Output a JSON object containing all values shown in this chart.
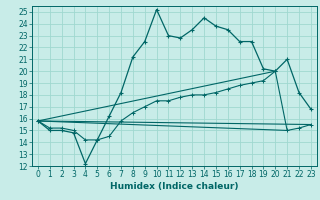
{
  "title": "",
  "xlabel": "Humidex (Indice chaleur)",
  "bg_color": "#c8ece8",
  "grid_color": "#a0d8d0",
  "line_color": "#006666",
  "xlim": [
    -0.5,
    23.5
  ],
  "ylim": [
    12,
    25.5
  ],
  "xticks": [
    0,
    1,
    2,
    3,
    4,
    5,
    6,
    7,
    8,
    9,
    10,
    11,
    12,
    13,
    14,
    15,
    16,
    17,
    18,
    19,
    20,
    21,
    22,
    23
  ],
  "yticks": [
    12,
    13,
    14,
    15,
    16,
    17,
    18,
    19,
    20,
    21,
    22,
    23,
    24,
    25
  ],
  "line1_x": [
    0,
    1,
    2,
    3,
    4,
    5,
    6,
    7,
    8,
    9,
    10,
    11,
    12,
    13,
    14,
    15,
    16,
    17,
    18,
    19,
    20,
    21,
    22,
    23
  ],
  "line1_y": [
    15.8,
    15.0,
    15.0,
    14.8,
    12.2,
    14.2,
    16.2,
    18.2,
    21.2,
    22.5,
    25.2,
    23.0,
    22.8,
    23.5,
    24.5,
    23.8,
    23.5,
    22.5,
    22.5,
    20.2,
    20.0,
    21.0,
    18.2,
    16.8
  ],
  "line2_x": [
    0,
    1,
    2,
    3,
    4,
    5,
    6,
    7,
    8,
    9,
    10,
    11,
    12,
    13,
    14,
    15,
    16,
    17,
    18,
    19,
    20,
    21,
    22,
    23
  ],
  "line2_y": [
    15.8,
    15.2,
    15.2,
    15.0,
    14.2,
    14.2,
    14.5,
    15.8,
    16.5,
    17.0,
    17.5,
    17.5,
    17.8,
    18.0,
    18.0,
    18.2,
    18.5,
    18.8,
    19.0,
    19.2,
    20.0,
    15.0,
    15.2,
    15.5
  ],
  "line3_x": [
    0,
    23
  ],
  "line3_y": [
    15.8,
    15.5
  ],
  "line4_x": [
    0,
    20
  ],
  "line4_y": [
    15.8,
    20.0
  ],
  "line5_x": [
    0,
    21
  ],
  "line5_y": [
    15.8,
    15.0
  ],
  "fontsize_ticks": 5.5,
  "fontsize_label": 6.5
}
